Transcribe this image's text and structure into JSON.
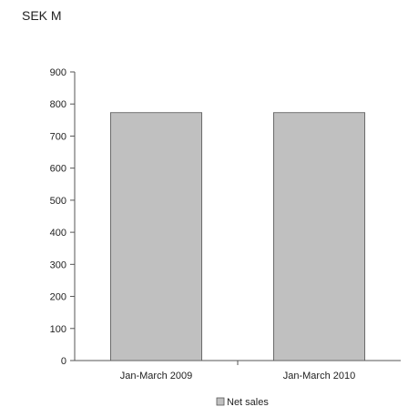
{
  "chart_data": {
    "type": "bar",
    "unit_label": "SEK M",
    "categories": [
      "Jan-March 2009",
      "Jan-March 2010"
    ],
    "series": [
      {
        "name": "Net sales",
        "color": "#c0c0c0",
        "values": [
          773,
          773
        ]
      }
    ],
    "ylim": [
      0,
      900
    ],
    "yticks": [
      0,
      100,
      200,
      300,
      400,
      500,
      600,
      700,
      800,
      900
    ],
    "grid": false,
    "legend_position": "bottom"
  }
}
